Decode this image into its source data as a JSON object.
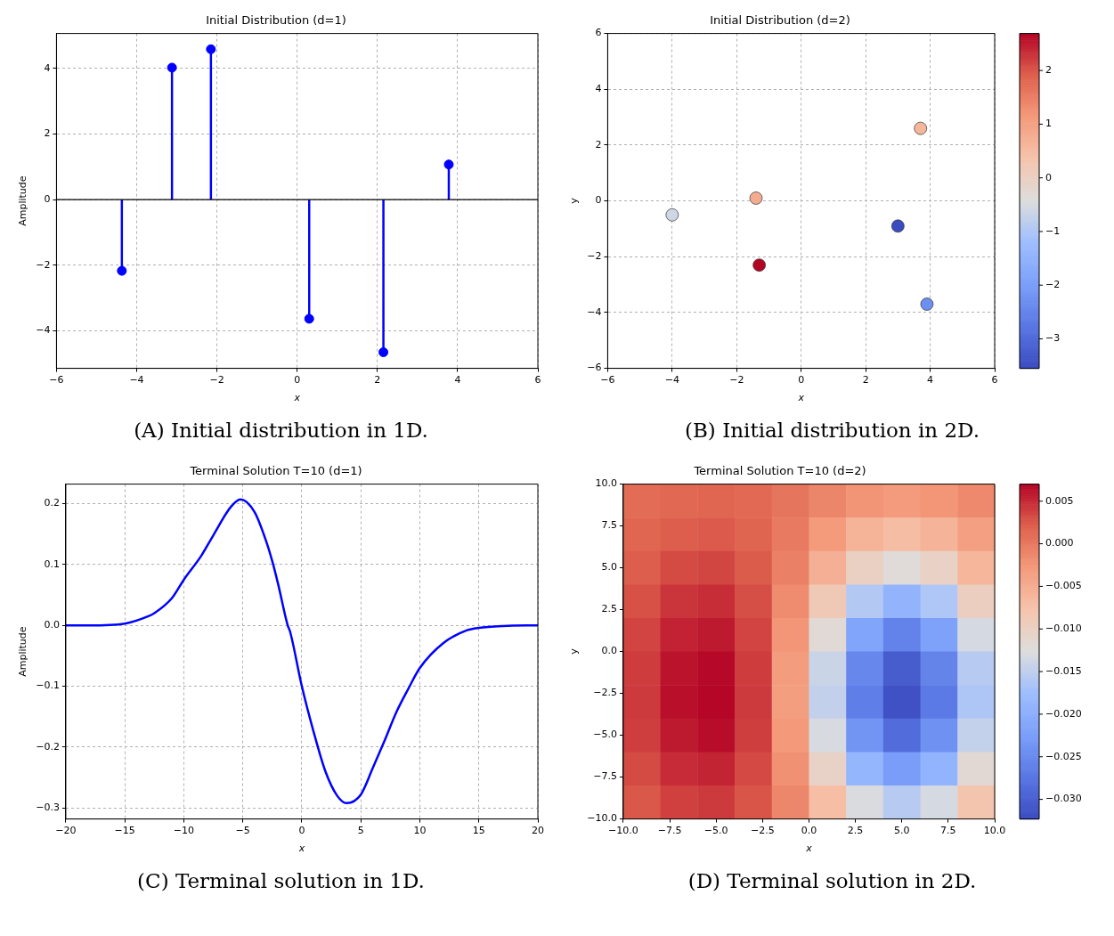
{
  "chart_data": [
    {
      "type": "lollipop",
      "title": "Initial Distribution (d=1)",
      "xlabel": "x",
      "ylabel": "Amplitude",
      "x": [
        -4.37,
        -3.12,
        -2.15,
        0.3,
        2.15,
        3.78
      ],
      "values": [
        -2.17,
        4.02,
        4.58,
        -3.63,
        -4.65,
        1.07
      ],
      "color": "#0000ff",
      "marker": "circle",
      "xlim": [
        -6,
        6
      ],
      "xticks": [
        -6,
        -4,
        -2,
        0,
        2,
        4,
        6
      ],
      "ylim": [
        -5.14,
        5.06
      ],
      "yticks": [
        -4,
        -2,
        0,
        2,
        4
      ],
      "grid": true,
      "annotations": [
        "(A) Initial distribution in 1D."
      ]
    },
    {
      "type": "scatter",
      "title": "Initial Distribution (d=2)",
      "xlabel": "x",
      "ylabel": "y",
      "x": [
        -4,
        -1.4,
        -1.3,
        3.7,
        3.0,
        3.9
      ],
      "values": [
        -0.5,
        0.1,
        -2.3,
        2.6,
        -0.9,
        -3.7
      ],
      "cvalues": [
        -0.6,
        0.8,
        2.69,
        0.6,
        -3.55,
        -2.3
      ],
      "clim": [
        -3.55,
        2.69
      ],
      "cticks": [
        -3,
        -2,
        -1,
        0,
        1,
        2
      ],
      "marker": "circle",
      "xlim": [
        -6,
        6
      ],
      "xticks": [
        -6,
        -4,
        -2,
        0,
        2,
        4,
        6
      ],
      "ylim": [
        -6,
        6
      ],
      "yticks": [
        -6,
        -4,
        -2,
        0,
        2,
        4,
        6
      ],
      "grid": true,
      "annotations": [
        "(B) Initial distribution in 2D."
      ]
    },
    {
      "type": "line",
      "title": "Terminal Solution T=10 (d=1)",
      "xlabel": "x",
      "ylabel": "Amplitude",
      "color": "#0000ff",
      "line_style": "solid",
      "x": [
        -20,
        -18,
        -15,
        -13,
        -12.5,
        -11,
        -10,
        -8.5,
        -7.5,
        -6,
        -5.2,
        -4,
        -3,
        -2.5,
        -2,
        -1.2,
        -1,
        0,
        1,
        2,
        3,
        3.8,
        5,
        6,
        7,
        8,
        9,
        10,
        12,
        14,
        15,
        17,
        20
      ],
      "values": [
        0,
        0,
        0.003,
        0.015,
        0.02,
        0.045,
        0.075,
        0.115,
        0.148,
        0.195,
        0.207,
        0.186,
        0.137,
        0.105,
        0.067,
        0,
        -0.01,
        -0.1,
        -0.175,
        -0.24,
        -0.28,
        -0.292,
        -0.278,
        -0.235,
        -0.19,
        -0.143,
        -0.105,
        -0.07,
        -0.029,
        -0.008,
        -0.004,
        -0.001,
        0
      ],
      "xlim": [
        -20,
        20
      ],
      "xticks": [
        -20,
        -15,
        -10,
        -5,
        0,
        5,
        10,
        15,
        20
      ],
      "ylim": [
        -0.318,
        0.232
      ],
      "yticks": [
        -0.3,
        -0.2,
        -0.1,
        {
          "value": 0,
          "label": "0.0"
        },
        0.1,
        0.2
      ],
      "grid": true,
      "annotations": [
        "(C) Terminal solution in 1D."
      ]
    },
    {
      "type": "heatmap",
      "title": "Terminal Solution T=10 (d=2)",
      "xlabel": "x",
      "ylabel": "y",
      "xlim": [
        -10,
        10
      ],
      "ylim": [
        -10,
        10
      ],
      "xticks": [
        {
          "value": -10,
          "label": "−10.0"
        },
        -7.5,
        {
          "value": -5,
          "label": "−5.0"
        },
        -2.5,
        {
          "value": 0,
          "label": "0.0"
        },
        2.5,
        {
          "value": 5,
          "label": "5.0"
        },
        7.5,
        {
          "value": 10,
          "label": "10.0"
        }
      ],
      "yticks": [
        {
          "value": -10,
          "label": "−10.0"
        },
        -7.5,
        {
          "value": -5,
          "label": "−5.0"
        },
        -2.5,
        {
          "value": 0,
          "label": "0.0"
        },
        2.5,
        {
          "value": 5,
          "label": "5.0"
        },
        7.5,
        {
          "value": 10,
          "label": "10.0"
        }
      ],
      "clim": [
        -0.0323,
        0.007
      ],
      "cticks": [
        {
          "value": -0.03,
          "label": "−0.030"
        },
        {
          "value": -0.025,
          "label": "−0.025"
        },
        {
          "value": -0.02,
          "label": "−0.020"
        },
        {
          "value": -0.015,
          "label": "−0.015"
        },
        {
          "value": -0.01,
          "label": "−0.010"
        },
        {
          "value": -0.005,
          "label": "−0.005"
        },
        {
          "value": 0,
          "label": "0.000"
        },
        {
          "value": 0.005,
          "label": "0.005"
        }
      ],
      "cells": [
        [
          0.0011,
          0.0014,
          0.0016,
          0.0012,
          0.0003,
          -0.0011,
          -0.0024,
          -0.003,
          -0.0025,
          -0.0014
        ],
        [
          0.0016,
          0.0022,
          0.0024,
          0.0017,
          -0.0001,
          -0.0029,
          -0.0057,
          -0.0069,
          -0.0058,
          -0.0034
        ],
        [
          0.0022,
          0.0032,
          0.0035,
          0.0023,
          -0.0007,
          -0.0053,
          -0.01,
          -0.0121,
          -0.0102,
          -0.0061
        ],
        [
          0.0029,
          0.0044,
          0.0048,
          0.003,
          -0.0016,
          -0.0087,
          -0.0159,
          -0.0191,
          -0.0162,
          -0.0097
        ],
        [
          0.0036,
          0.0054,
          0.0059,
          0.0036,
          -0.0025,
          -0.0119,
          -0.0216,
          -0.0259,
          -0.022,
          -0.0133
        ],
        [
          0.004,
          0.0062,
          0.0068,
          0.004,
          -0.0031,
          -0.0141,
          -0.0254,
          -0.0304,
          -0.0258,
          -0.0156
        ],
        [
          0.0041,
          0.0064,
          0.0069,
          0.0041,
          -0.0033,
          -0.0147,
          -0.0265,
          -0.0317,
          -0.027,
          -0.0163
        ],
        [
          0.0039,
          0.0059,
          0.0065,
          0.0039,
          -0.0028,
          -0.0131,
          -0.0238,
          -0.0285,
          -0.0242,
          -0.0146
        ],
        [
          0.0032,
          0.0049,
          0.0053,
          0.0033,
          -0.0021,
          -0.0104,
          -0.0189,
          -0.0227,
          -0.0193,
          -0.0116
        ],
        [
          0.0025,
          0.0038,
          0.0041,
          0.0027,
          -0.0012,
          -0.007,
          -0.013,
          -0.0156,
          -0.0133,
          -0.0079
        ]
      ],
      "annotations": [
        "(D) Terminal solution in 2D."
      ]
    }
  ]
}
